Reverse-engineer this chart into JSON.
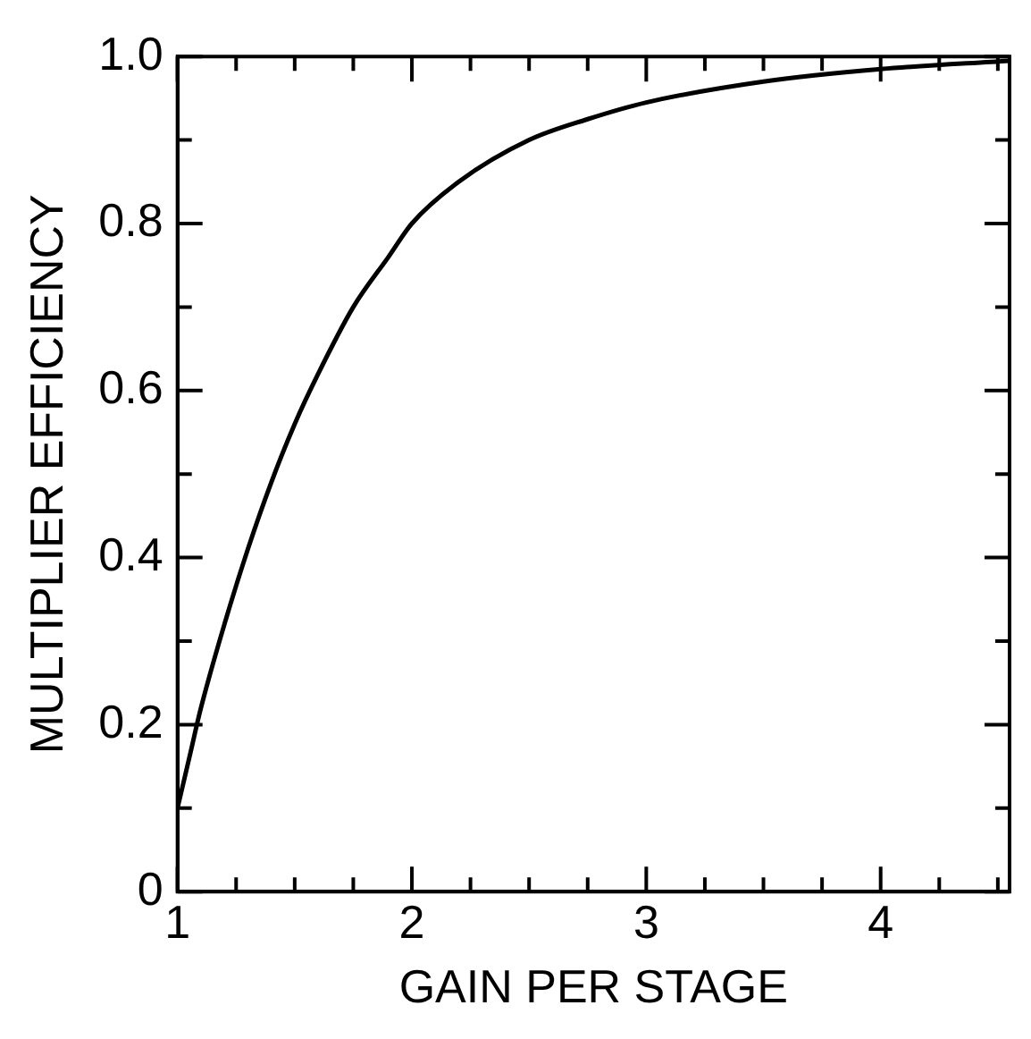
{
  "chart_data": {
    "type": "line",
    "xlabel": "GAIN PER STAGE",
    "ylabel": "MULTIPLIER EFFICIENCY",
    "x": [
      1,
      1.05,
      1.1,
      1.2,
      1.3,
      1.4,
      1.5,
      1.6,
      1.75,
      1.9,
      2,
      2.2,
      2.5,
      2.75,
      3,
      3.5,
      4,
      4.55
    ],
    "series": [
      {
        "color": "#000000",
        "values": [
          0.1,
          0.16,
          0.22,
          0.32,
          0.41,
          0.49,
          0.56,
          0.62,
          0.7,
          0.76,
          0.8,
          0.85,
          0.9,
          0.925,
          0.945,
          0.97,
          0.985,
          0.995
        ]
      }
    ],
    "xlim": [
      1,
      4.55
    ],
    "ylim": [
      0,
      1
    ],
    "xticks": [
      1,
      {
        "value": 1.25,
        "label": null
      },
      {
        "value": 1.5,
        "label": null
      },
      {
        "value": 1.75,
        "label": null
      },
      2,
      {
        "value": 2.25,
        "label": null
      },
      {
        "value": 2.5,
        "label": null
      },
      {
        "value": 2.75,
        "label": null
      },
      3,
      {
        "value": 3.25,
        "label": null
      },
      {
        "value": 3.5,
        "label": null
      },
      {
        "value": 3.75,
        "label": null
      },
      4,
      {
        "value": 4.25,
        "label": null
      },
      {
        "value": 4.5,
        "label": null
      }
    ],
    "yticks": [
      0,
      {
        "value": 0.1,
        "label": null
      },
      0.2,
      {
        "value": 0.3,
        "label": null
      },
      0.4,
      {
        "value": 0.5,
        "label": null
      },
      0.6,
      {
        "value": 0.7,
        "label": null
      },
      0.8,
      {
        "value": 0.9,
        "label": null
      },
      {
        "value": 1,
        "label": "1.0"
      }
    ],
    "grid": false,
    "legend": false,
    "marker": "none",
    "line_style": "solid"
  }
}
